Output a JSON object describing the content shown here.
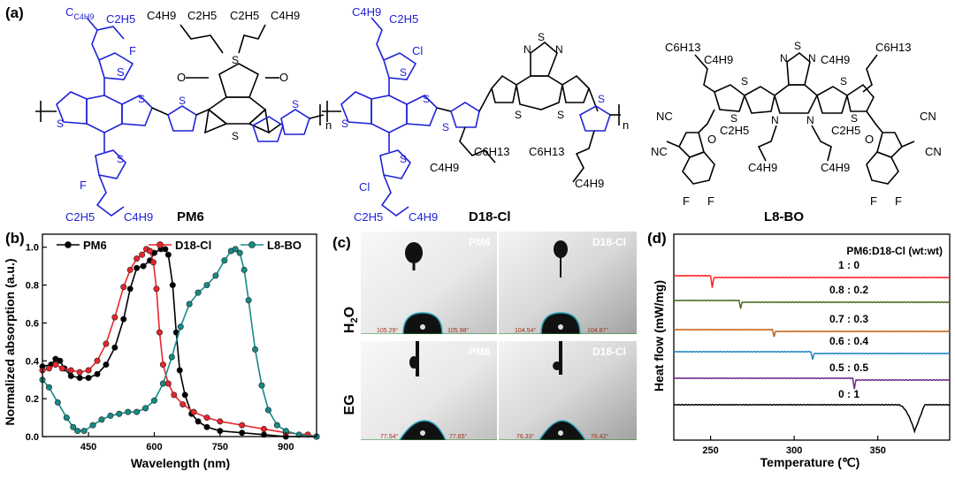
{
  "panel_a": {
    "label": "(a)",
    "molecules": [
      {
        "name": "PM6",
        "groups": [
          "C4H9",
          "C2H5",
          "C4H9",
          "C2H5",
          "C2H5",
          "C4H9",
          "C2H5",
          "C4H9"
        ],
        "atoms": [
          "F",
          "S",
          "O",
          "n"
        ]
      },
      {
        "name": "D18-Cl",
        "groups": [
          "C4H9",
          "C2H5",
          "C4H9",
          "C6H13",
          "C6H13",
          "C4H9",
          "C2H5",
          "C4H9"
        ],
        "atoms": [
          "Cl",
          "S",
          "N",
          "n"
        ]
      },
      {
        "name": "L8-BO",
        "groups": [
          "C6H13",
          "C4H9",
          "C4H9",
          "C6H13",
          "C2H5",
          "C2H5",
          "C4H9",
          "C4H9"
        ],
        "atoms": [
          "S",
          "N",
          "NC",
          "CN",
          "O",
          "F"
        ]
      }
    ],
    "labels": {
      "pm6": "PM6",
      "d18": "D18-Cl",
      "l8": "L8-BO",
      "f": "F",
      "cl": "Cl",
      "s": "S",
      "o": "O",
      "n": "N",
      "nc": "NC",
      "cn": "CN",
      "rep": "n",
      "c4h9": "C4H9",
      "c2h5": "C2H5",
      "c6h13": "C6H13"
    }
  },
  "panel_b": {
    "label": "(b)"
  },
  "panel_c": {
    "label": "(c)",
    "rows": [
      "H2O",
      "EG"
    ],
    "images": [
      {
        "material": "PM6",
        "liquid": "H2O",
        "left_angle": "105.29°",
        "right_angle": "105.98°"
      },
      {
        "material": "D18-Cl",
        "liquid": "H2O",
        "left_angle": "104.54°",
        "right_angle": "104.87°"
      },
      {
        "material": "PM6",
        "liquid": "EG",
        "left_angle": "77.54°",
        "right_angle": "77.65°"
      },
      {
        "material": "D18-Cl",
        "liquid": "EG",
        "left_angle": "76.33°",
        "right_angle": "76.42°"
      }
    ]
  },
  "panel_d": {
    "label": "(d)"
  },
  "chart_data": [
    {
      "type": "line",
      "xlabel": "Wavelength (nm)",
      "ylabel": "Normalized absorption (a.u.)",
      "xlim": [
        345,
        970
      ],
      "ylim": [
        0,
        1.05
      ],
      "xticks": [
        450,
        600,
        750,
        900
      ],
      "yticks": [
        0.0,
        0.2,
        0.4,
        0.6,
        0.8,
        1.0
      ],
      "ytick_labels": [
        "0.0",
        "0.2",
        "0.4",
        "0.6",
        "0.8",
        "1.0"
      ],
      "legend_position": "top",
      "series": [
        {
          "name": "PM6",
          "color": "#000000",
          "points": [
            [
              345,
              0.37
            ],
            [
              365,
              0.38
            ],
            [
              375,
              0.41
            ],
            [
              385,
              0.4
            ],
            [
              395,
              0.36
            ],
            [
              410,
              0.32
            ],
            [
              430,
              0.31
            ],
            [
              450,
              0.31
            ],
            [
              470,
              0.33
            ],
            [
              490,
              0.38
            ],
            [
              510,
              0.47
            ],
            [
              530,
              0.62
            ],
            [
              545,
              0.78
            ],
            [
              560,
              0.89
            ],
            [
              575,
              0.9
            ],
            [
              590,
              0.93
            ],
            [
              600,
              0.97
            ],
            [
              615,
              0.99
            ],
            [
              625,
              0.99
            ],
            [
              632,
              0.96
            ],
            [
              642,
              0.8
            ],
            [
              650,
              0.55
            ],
            [
              658,
              0.35
            ],
            [
              670,
              0.22
            ],
            [
              685,
              0.12
            ],
            [
              700,
              0.08
            ],
            [
              720,
              0.05
            ],
            [
              750,
              0.03
            ],
            [
              800,
              0.02
            ],
            [
              850,
              0.01
            ],
            [
              900,
              0.0
            ],
            [
              970,
              0.0
            ]
          ]
        },
        {
          "name": "D18-Cl",
          "color": "#e8262c",
          "points": [
            [
              345,
              0.35
            ],
            [
              360,
              0.36
            ],
            [
              375,
              0.38
            ],
            [
              390,
              0.36
            ],
            [
              410,
              0.35
            ],
            [
              430,
              0.34
            ],
            [
              450,
              0.35
            ],
            [
              470,
              0.4
            ],
            [
              490,
              0.49
            ],
            [
              510,
              0.63
            ],
            [
              530,
              0.79
            ],
            [
              545,
              0.88
            ],
            [
              560,
              0.94
            ],
            [
              572,
              0.96
            ],
            [
              582,
              0.99
            ],
            [
              590,
              0.98
            ],
            [
              598,
              0.92
            ],
            [
              605,
              0.78
            ],
            [
              612,
              0.55
            ],
            [
              620,
              0.38
            ],
            [
              632,
              0.28
            ],
            [
              645,
              0.22
            ],
            [
              665,
              0.17
            ],
            [
              690,
              0.13
            ],
            [
              720,
              0.1
            ],
            [
              750,
              0.08
            ],
            [
              800,
              0.06
            ],
            [
              850,
              0.04
            ],
            [
              900,
              0.02
            ],
            [
              950,
              0.01
            ],
            [
              970,
              0.0
            ]
          ]
        },
        {
          "name": "L8-BO",
          "color": "#158b86",
          "points": [
            [
              345,
              0.3
            ],
            [
              360,
              0.26
            ],
            [
              380,
              0.18
            ],
            [
              400,
              0.1
            ],
            [
              415,
              0.05
            ],
            [
              425,
              0.03
            ],
            [
              440,
              0.03
            ],
            [
              460,
              0.06
            ],
            [
              480,
              0.09
            ],
            [
              500,
              0.11
            ],
            [
              520,
              0.12
            ],
            [
              540,
              0.13
            ],
            [
              560,
              0.13
            ],
            [
              580,
              0.15
            ],
            [
              600,
              0.19
            ],
            [
              620,
              0.28
            ],
            [
              640,
              0.42
            ],
            [
              660,
              0.58
            ],
            [
              680,
              0.7
            ],
            [
              700,
              0.76
            ],
            [
              720,
              0.8
            ],
            [
              740,
              0.85
            ],
            [
              760,
              0.93
            ],
            [
              775,
              0.98
            ],
            [
              785,
              0.99
            ],
            [
              795,
              0.97
            ],
            [
              805,
              0.88
            ],
            [
              815,
              0.72
            ],
            [
              830,
              0.46
            ],
            [
              845,
              0.27
            ],
            [
              860,
              0.14
            ],
            [
              880,
              0.06
            ],
            [
              900,
              0.03
            ],
            [
              930,
              0.01
            ],
            [
              970,
              0.0
            ]
          ]
        }
      ]
    },
    {
      "type": "line",
      "title": "PM6:D18-Cl (wt:wt)",
      "xlabel": "Temperature (℃)",
      "ylabel": "Heat flow (mW/mg)",
      "xlim": [
        228,
        393
      ],
      "xticks": [
        250,
        300,
        350
      ],
      "series": [
        {
          "name": "1 : 0",
          "color": "#ff2020",
          "baseline": 312,
          "dip_x": 251,
          "dip_depth": 14
        },
        {
          "name": "0.8 : 0.2",
          "color": "#4a6b22",
          "baseline": 340,
          "dip_x": 268,
          "dip_depth": 9
        },
        {
          "name": "0.7 : 0.3",
          "color": "#c0631a",
          "baseline": 373,
          "dip_x": 288,
          "dip_depth": 8
        },
        {
          "name": "0.6 : 0.4",
          "color": "#1f86c4",
          "baseline": 398,
          "dip_x": 311,
          "dip_depth": 9
        },
        {
          "name": "0.5 : 0.5",
          "color": "#6a2a8f",
          "baseline": 428,
          "dip_x": 336,
          "dip_depth": 12
        },
        {
          "name": "0 : 1",
          "color": "#000000",
          "baseline": 458,
          "dip_x": 372,
          "dip_depth": 30
        }
      ]
    }
  ]
}
